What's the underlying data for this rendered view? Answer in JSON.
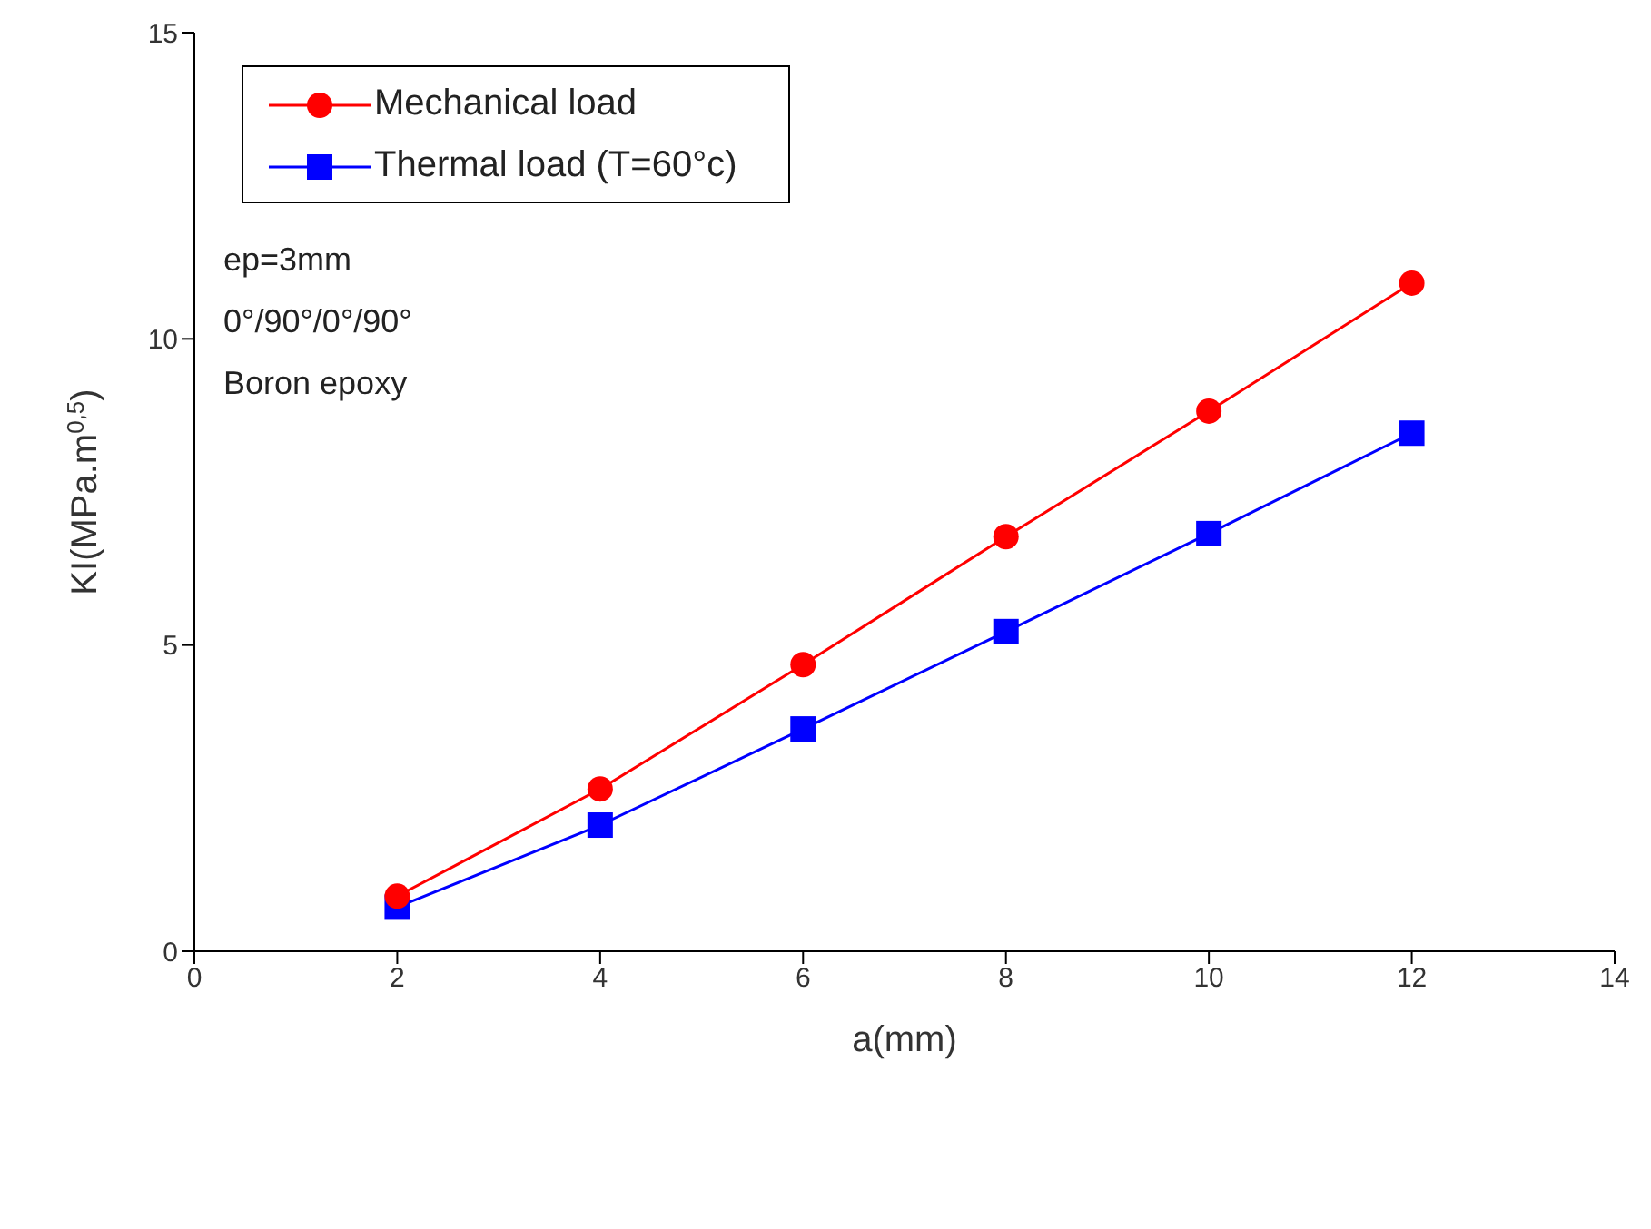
{
  "chart_data": {
    "type": "line",
    "xlabel": "a(mm)",
    "ylabel": "KI(MPa.m$^{0,5}$)",
    "x": [
      2,
      4,
      6,
      8,
      10,
      12
    ],
    "series": [
      {
        "name": "Mechanical load",
        "color": "#ff0000",
        "marker": "circle",
        "values": [
          0.9,
          2.65,
          4.68,
          6.77,
          8.82,
          10.91
        ]
      },
      {
        "name": "Thermal load (T=60°c)",
        "color": "#0000ff",
        "marker": "square",
        "values": [
          0.72,
          2.06,
          3.63,
          5.22,
          6.82,
          8.46
        ]
      }
    ],
    "xlim": [
      0,
      14
    ],
    "xticks": [
      0,
      2,
      4,
      6,
      8,
      10,
      12,
      14
    ],
    "ylim": [
      0,
      15
    ],
    "yticks": [
      0,
      5,
      10,
      15
    ],
    "grid": false,
    "legend": "top left",
    "line_style": "solid",
    "annotations": [
      "ep=3mm",
      "0°/90°/0°/90°",
      "Boron epoxy"
    ]
  }
}
